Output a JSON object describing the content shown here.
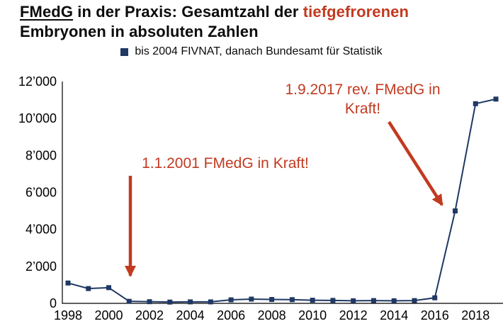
{
  "title": {
    "underlined": "FMedG",
    "rest": " in der Praxis: Gesamtzahl der ",
    "highlight": "tiefgefrorenen",
    "line2": "Embryonen in absoluten Zahlen"
  },
  "legend": {
    "label": "bis 2004 FIVNAT, danach Bundesamt für Statistik"
  },
  "annotations": [
    {
      "lines": [
        "1.1.2001 FMedG in Kraft!"
      ],
      "target_year": 2001
    },
    {
      "lines": [
        "1.9.2017 rev. FMedG in",
        "Kraft!"
      ],
      "target_year": 2017
    }
  ],
  "colors": {
    "line": "#1F3864",
    "accent": "#C23A20",
    "axis": "#000000"
  },
  "chart_data": {
    "type": "line",
    "title": "FMedG in der Praxis: Gesamtzahl der tiefgefrorenen Embryonen in absoluten Zahlen",
    "series_label": "bis 2004 FIVNAT, danach Bundesamt für Statistik",
    "x": [
      1998,
      1999,
      2000,
      2001,
      2002,
      2003,
      2004,
      2005,
      2006,
      2007,
      2008,
      2009,
      2010,
      2011,
      2012,
      2013,
      2014,
      2015,
      2016,
      2017,
      2018,
      2019
    ],
    "values": [
      1100,
      800,
      850,
      110,
      90,
      70,
      80,
      80,
      190,
      230,
      210,
      200,
      170,
      160,
      140,
      150,
      140,
      150,
      300,
      5000,
      10800,
      11050
    ],
    "xticks": [
      1998,
      2000,
      2002,
      2004,
      2006,
      2008,
      2010,
      2012,
      2014,
      2016,
      2018
    ],
    "yticks": [
      0,
      2000,
      4000,
      6000,
      8000,
      10000,
      12000
    ],
    "ytick_labels": [
      "0",
      "2’000",
      "4’000",
      "6’000",
      "8’000",
      "10’000",
      "12’000"
    ],
    "ylim": [
      0,
      12000
    ],
    "xlabel": "",
    "ylabel": "",
    "grid": false,
    "legend_position": "top",
    "marker": "square"
  }
}
